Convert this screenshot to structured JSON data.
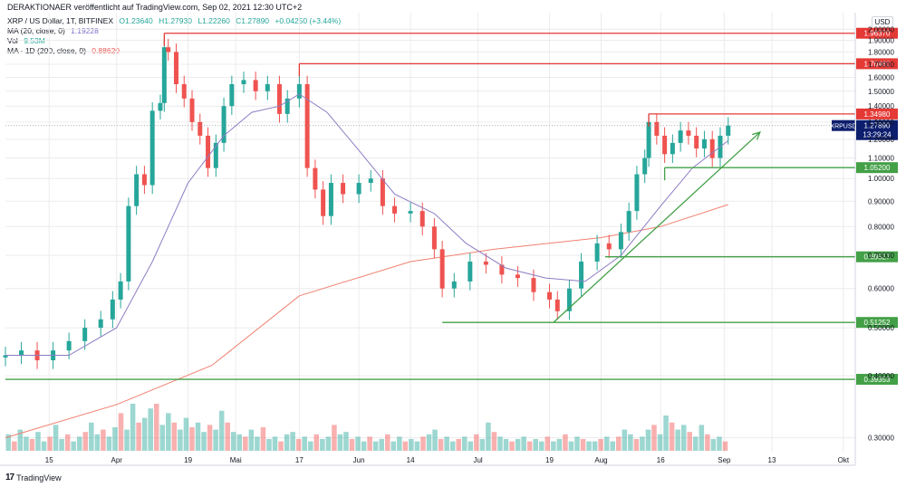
{
  "header": {
    "publish_line": "DERAKTIONAER veröffentlicht auf TradingView.com, Sep 02, 2021 12:30 UTC+2",
    "currency": "USD"
  },
  "legend": {
    "symbol": "XRP / US Dollar, 1T, BITFINEX",
    "open": "O1.23640",
    "high": "H1.27930",
    "low": "L1.22260",
    "close": "C1.27890",
    "change": "+0.04250 (+3.44%)",
    "ma20_label": "MA (20, close, 0)",
    "ma20_value": "1.19228",
    "vol_label": "Vol",
    "vol_value": "9.53M",
    "ma200_label": "MA · 1D (200, close, 0)",
    "ma200_value": "0.88620"
  },
  "footer": {
    "brand": "TradingView"
  },
  "colors": {
    "up": "#26a69a",
    "down": "#ef5350",
    "ma20": "#8e7cc3",
    "ma200": "#f08070",
    "resistance": "#e53935",
    "support": "#43a047",
    "grid": "#ececec",
    "price_tag": "#0d1e6e"
  },
  "chart_data": {
    "type": "candlestick",
    "symbol": "XRPUSD",
    "y_scale": "log",
    "ylim": [
      0.28,
      2.02
    ],
    "y_ticks": [
      "2.00000",
      "1.90000",
      "1.80000",
      "1.70000",
      "1.60000",
      "1.50000",
      "1.40000",
      "1.30000",
      "1.20000",
      "1.10000",
      "1.00000",
      "0.90000",
      "0.80000",
      "0.70000",
      "0.60000",
      "0.50000",
      "0.40000",
      "0.30000"
    ],
    "x_range": [
      "2021-03-04",
      "2021-10-04"
    ],
    "x_ticks": [
      {
        "label": "15",
        "date": "2021-03-15"
      },
      {
        "label": "Apr",
        "date": "2021-04-01"
      },
      {
        "label": "19",
        "date": "2021-04-19"
      },
      {
        "label": "Mai",
        "date": "2021-05-01"
      },
      {
        "label": "17",
        "date": "2021-05-17"
      },
      {
        "label": "Jun",
        "date": "2021-06-01"
      },
      {
        "label": "14",
        "date": "2021-06-14"
      },
      {
        "label": "Jul",
        "date": "2021-07-01"
      },
      {
        "label": "19",
        "date": "2021-07-19"
      },
      {
        "label": "Aug",
        "date": "2021-08-01"
      },
      {
        "label": "16",
        "date": "2021-08-16"
      },
      {
        "label": "Sep",
        "date": "2021-09-01"
      },
      {
        "label": "13",
        "date": "2021-09-13"
      },
      {
        "label": "Okt",
        "date": "2021-10-01"
      }
    ],
    "close_series": [
      {
        "date": "2021-03-04",
        "close": 0.44
      },
      {
        "date": "2021-03-08",
        "close": 0.45
      },
      {
        "date": "2021-03-12",
        "close": 0.43
      },
      {
        "date": "2021-03-16",
        "close": 0.45
      },
      {
        "date": "2021-03-20",
        "close": 0.47
      },
      {
        "date": "2021-03-24",
        "close": 0.5
      },
      {
        "date": "2021-03-28",
        "close": 0.52
      },
      {
        "date": "2021-03-31",
        "close": 0.57
      },
      {
        "date": "2021-04-02",
        "close": 0.62
      },
      {
        "date": "2021-04-04",
        "close": 0.88
      },
      {
        "date": "2021-04-06",
        "close": 1.02
      },
      {
        "date": "2021-04-08",
        "close": 0.97
      },
      {
        "date": "2021-04-10",
        "close": 1.37
      },
      {
        "date": "2021-04-12",
        "close": 1.42
      },
      {
        "date": "2021-04-13",
        "close": 1.84
      },
      {
        "date": "2021-04-14",
        "close": 1.8
      },
      {
        "date": "2021-04-16",
        "close": 1.55
      },
      {
        "date": "2021-04-18",
        "close": 1.45
      },
      {
        "date": "2021-04-20",
        "close": 1.3
      },
      {
        "date": "2021-04-22",
        "close": 1.22
      },
      {
        "date": "2021-04-24",
        "close": 1.05
      },
      {
        "date": "2021-04-26",
        "close": 1.18
      },
      {
        "date": "2021-04-28",
        "close": 1.4
      },
      {
        "date": "2021-04-30",
        "close": 1.55
      },
      {
        "date": "2021-05-03",
        "close": 1.58
      },
      {
        "date": "2021-05-06",
        "close": 1.5
      },
      {
        "date": "2021-05-09",
        "close": 1.55
      },
      {
        "date": "2021-05-12",
        "close": 1.35
      },
      {
        "date": "2021-05-14",
        "close": 1.45
      },
      {
        "date": "2021-05-17",
        "close": 1.55
      },
      {
        "date": "2021-05-19",
        "close": 1.05
      },
      {
        "date": "2021-05-21",
        "close": 0.95
      },
      {
        "date": "2021-05-23",
        "close": 0.84
      },
      {
        "date": "2021-05-25",
        "close": 0.98
      },
      {
        "date": "2021-05-28",
        "close": 0.93
      },
      {
        "date": "2021-06-01",
        "close": 0.98
      },
      {
        "date": "2021-06-04",
        "close": 1.0
      },
      {
        "date": "2021-06-07",
        "close": 0.88
      },
      {
        "date": "2021-06-10",
        "close": 0.85
      },
      {
        "date": "2021-06-14",
        "close": 0.86
      },
      {
        "date": "2021-06-17",
        "close": 0.8
      },
      {
        "date": "2021-06-20",
        "close": 0.72
      },
      {
        "date": "2021-06-22",
        "close": 0.6
      },
      {
        "date": "2021-06-25",
        "close": 0.62
      },
      {
        "date": "2021-06-29",
        "close": 0.68
      },
      {
        "date": "2021-07-03",
        "close": 0.67
      },
      {
        "date": "2021-07-07",
        "close": 0.64
      },
      {
        "date": "2021-07-11",
        "close": 0.63
      },
      {
        "date": "2021-07-15",
        "close": 0.59
      },
      {
        "date": "2021-07-19",
        "close": 0.57
      },
      {
        "date": "2021-07-21",
        "close": 0.54
      },
      {
        "date": "2021-07-24",
        "close": 0.6
      },
      {
        "date": "2021-07-27",
        "close": 0.68
      },
      {
        "date": "2021-07-31",
        "close": 0.74
      },
      {
        "date": "2021-08-03",
        "close": 0.72
      },
      {
        "date": "2021-08-06",
        "close": 0.78
      },
      {
        "date": "2021-08-08",
        "close": 0.86
      },
      {
        "date": "2021-08-10",
        "close": 1.02
      },
      {
        "date": "2021-08-12",
        "close": 1.1
      },
      {
        "date": "2021-08-13",
        "close": 1.3
      },
      {
        "date": "2021-08-15",
        "close": 1.22
      },
      {
        "date": "2021-08-17",
        "close": 1.12
      },
      {
        "date": "2021-08-19",
        "close": 1.18
      },
      {
        "date": "2021-08-21",
        "close": 1.25
      },
      {
        "date": "2021-08-23",
        "close": 1.22
      },
      {
        "date": "2021-08-25",
        "close": 1.15
      },
      {
        "date": "2021-08-27",
        "close": 1.2
      },
      {
        "date": "2021-08-29",
        "close": 1.1
      },
      {
        "date": "2021-08-31",
        "close": 1.22
      },
      {
        "date": "2021-09-02",
        "close": 1.2789
      }
    ],
    "ma20_series": [
      {
        "date": "2021-03-04",
        "value": 0.44
      },
      {
        "date": "2021-03-20",
        "value": 0.44
      },
      {
        "date": "2021-04-01",
        "value": 0.5
      },
      {
        "date": "2021-04-10",
        "value": 0.68
      },
      {
        "date": "2021-04-19",
        "value": 0.98
      },
      {
        "date": "2021-04-28",
        "value": 1.22
      },
      {
        "date": "2021-05-05",
        "value": 1.36
      },
      {
        "date": "2021-05-12",
        "value": 1.4
      },
      {
        "date": "2021-05-17",
        "value": 1.48
      },
      {
        "date": "2021-05-24",
        "value": 1.36
      },
      {
        "date": "2021-06-01",
        "value": 1.14
      },
      {
        "date": "2021-06-10",
        "value": 0.93
      },
      {
        "date": "2021-06-20",
        "value": 0.85
      },
      {
        "date": "2021-06-28",
        "value": 0.74
      },
      {
        "date": "2021-07-08",
        "value": 0.66
      },
      {
        "date": "2021-07-18",
        "value": 0.63
      },
      {
        "date": "2021-07-28",
        "value": 0.62
      },
      {
        "date": "2021-08-06",
        "value": 0.7
      },
      {
        "date": "2021-08-16",
        "value": 0.88
      },
      {
        "date": "2021-08-24",
        "value": 1.05
      },
      {
        "date": "2021-09-02",
        "value": 1.19228
      }
    ],
    "ma200_series": [
      {
        "date": "2021-03-04",
        "value": 0.3
      },
      {
        "date": "2021-04-01",
        "value": 0.35
      },
      {
        "date": "2021-04-25",
        "value": 0.42
      },
      {
        "date": "2021-05-17",
        "value": 0.58
      },
      {
        "date": "2021-06-14",
        "value": 0.68
      },
      {
        "date": "2021-07-05",
        "value": 0.72
      },
      {
        "date": "2021-08-01",
        "value": 0.76
      },
      {
        "date": "2021-08-16",
        "value": 0.8
      },
      {
        "date": "2021-09-02",
        "value": 0.8862
      }
    ],
    "volume_series": [
      0.35,
      0.2,
      0.45,
      0.3,
      0.25,
      0.4,
      0.2,
      0.3,
      0.55,
      0.25,
      0.35,
      0.2,
      0.3,
      0.4,
      0.6,
      0.35,
      0.45,
      0.3,
      0.5,
      0.8,
      0.45,
      1.0,
      0.6,
      0.7,
      0.9,
      1.0,
      0.55,
      0.8,
      0.6,
      0.45,
      0.7,
      0.5,
      0.6,
      0.4,
      0.55,
      0.45,
      0.85,
      0.6,
      0.4,
      0.35,
      0.3,
      0.45,
      0.3,
      0.5,
      0.25,
      0.3,
      0.2,
      0.35,
      0.4,
      0.25,
      0.3,
      0.2,
      0.35,
      0.25,
      0.3,
      0.55,
      0.35,
      0.4,
      0.25,
      0.3,
      0.2,
      0.3,
      0.2,
      0.25,
      0.35,
      0.2,
      0.3,
      0.2,
      0.25,
      0.2,
      0.3,
      0.35,
      0.45,
      0.25,
      0.3,
      0.2,
      0.25,
      0.3,
      0.2,
      0.35,
      0.25,
      0.6,
      0.4,
      0.3,
      0.25,
      0.2,
      0.25,
      0.3,
      0.2,
      0.25,
      0.2,
      0.3,
      0.2,
      0.25,
      0.35,
      0.2,
      0.3,
      0.25,
      0.2,
      0.2,
      0.25,
      0.3,
      0.2,
      0.3,
      0.45,
      0.35,
      0.25,
      0.3,
      0.45,
      0.55,
      0.35,
      0.75,
      0.6,
      0.45,
      0.55,
      0.4,
      0.3,
      0.55,
      0.35,
      0.25,
      0.3,
      0.2
    ],
    "horizontal_levels": [
      {
        "label": "1.96370",
        "value": 1.9637,
        "color": "resistance",
        "start_date": "2021-04-13"
      },
      {
        "label": "1.70460",
        "value": 1.7046,
        "color": "resistance",
        "start_date": "2021-05-17"
      },
      {
        "label": "1.34980",
        "value": 1.3498,
        "color": "resistance",
        "start_date": "2021-08-13"
      },
      {
        "label": "1.05200",
        "value": 1.052,
        "color": "support",
        "start_date": "2021-08-17"
      },
      {
        "label": "0.69527",
        "value": 0.69527,
        "color": "support",
        "start_date": "2021-08-02"
      },
      {
        "label": "0.51252",
        "value": 0.51252,
        "color": "support",
        "start_date": "2021-06-22"
      },
      {
        "label": "0.39353",
        "value": 0.39353,
        "color": "support",
        "start_date": "2021-03-04"
      }
    ],
    "trendlines": [
      {
        "name": "support-trend",
        "from": {
          "date": "2021-07-20",
          "value": 0.5125
        },
        "to": {
          "date": "2021-09-10",
          "value": 1.24
        },
        "color": "support",
        "arrow": true
      }
    ],
    "last_price": {
      "symbol": "XRPUSD",
      "value": 1.2789,
      "label": "1.27890",
      "countdown": "13:29:24"
    }
  }
}
